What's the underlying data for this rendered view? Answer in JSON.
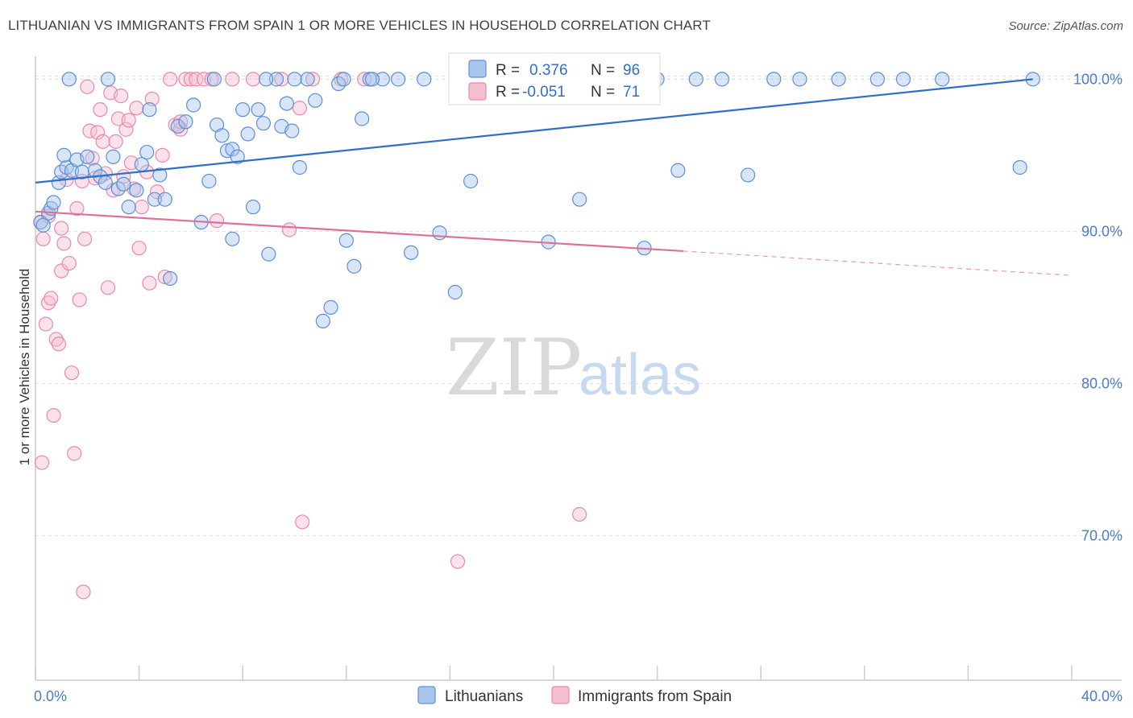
{
  "title": "LITHUANIAN VS IMMIGRANTS FROM SPAIN 1 OR MORE VEHICLES IN HOUSEHOLD CORRELATION CHART",
  "source": "Source: ZipAtlas.com",
  "watermark": {
    "part1": "ZIP",
    "part2": "atlas"
  },
  "colors": {
    "blue_fill": "#a9c6ee",
    "blue_stroke": "#5d8fd6",
    "blue_line": "#2f6fca",
    "pink_fill": "#f6bfd1",
    "pink_stroke": "#e98aaa",
    "pink_line": "#e06f98",
    "tick_text": "#4a7cc7",
    "grid": "#dddddd"
  },
  "chart_data": {
    "type": "scatter",
    "title": "LITHUANIAN VS IMMIGRANTS FROM SPAIN 1 OR MORE VEHICLES IN HOUSEHOLD CORRELATION CHART",
    "xlabel": "",
    "ylabel": "1 or more Vehicles in Household",
    "xlim": [
      0,
      40
    ],
    "ylim": [
      60.5,
      101.5
    ],
    "x_tick_labels": [
      "0.0%",
      "40.0%"
    ],
    "y_ticks": [
      70,
      80,
      90,
      100
    ],
    "y_tick_labels": [
      "70.0%",
      "80.0%",
      "90.0%",
      "100.0%"
    ],
    "grid": "horizontal dashed",
    "legend_position": "top-center",
    "legend": [
      {
        "r_label": "R =",
        "r_value": "0.376",
        "n_label": "N =",
        "n_value": "96"
      },
      {
        "r_label": "R =",
        "r_value": "-0.051",
        "n_label": "N =",
        "n_value": "71"
      }
    ],
    "series": [
      {
        "name": "Lithuanians",
        "color": "#a9c6ee",
        "trend": {
          "x0": 0,
          "y0": 93.2,
          "x1": 38.5,
          "y1": 100.0
        },
        "points": [
          [
            0.2,
            90.6
          ],
          [
            0.3,
            90.4
          ],
          [
            0.5,
            91.2
          ],
          [
            0.6,
            91.5
          ],
          [
            0.7,
            91.9
          ],
          [
            0.9,
            93.2
          ],
          [
            1.0,
            93.9
          ],
          [
            1.2,
            94.2
          ],
          [
            1.4,
            94.0
          ],
          [
            1.6,
            94.7
          ],
          [
            1.8,
            93.9
          ],
          [
            2.0,
            94.9
          ],
          [
            2.3,
            94.0
          ],
          [
            2.5,
            93.6
          ],
          [
            2.7,
            93.2
          ],
          [
            3.0,
            94.9
          ],
          [
            3.2,
            92.8
          ],
          [
            3.4,
            93.1
          ],
          [
            3.6,
            91.6
          ],
          [
            3.9,
            92.7
          ],
          [
            4.1,
            94.4
          ],
          [
            4.3,
            95.2
          ],
          [
            4.6,
            92.1
          ],
          [
            4.8,
            93.7
          ],
          [
            5.0,
            92.1
          ],
          [
            5.5,
            96.9
          ],
          [
            5.8,
            97.2
          ],
          [
            6.1,
            98.3
          ],
          [
            6.4,
            90.6
          ],
          [
            6.7,
            93.3
          ],
          [
            7.0,
            97.0
          ],
          [
            7.2,
            96.3
          ],
          [
            7.4,
            95.3
          ],
          [
            7.6,
            95.4
          ],
          [
            7.8,
            94.9
          ],
          [
            8.0,
            98.0
          ],
          [
            8.2,
            96.4
          ],
          [
            8.4,
            91.6
          ],
          [
            8.6,
            98.0
          ],
          [
            8.8,
            97.1
          ],
          [
            9.0,
            88.5
          ],
          [
            9.3,
            100.0
          ],
          [
            9.5,
            96.9
          ],
          [
            9.7,
            98.4
          ],
          [
            9.9,
            96.6
          ],
          [
            10.2,
            94.2
          ],
          [
            10.5,
            100.0
          ],
          [
            10.8,
            98.6
          ],
          [
            11.1,
            84.1
          ],
          [
            11.4,
            85.0
          ],
          [
            11.7,
            99.7
          ],
          [
            12.0,
            89.4
          ],
          [
            12.3,
            87.7
          ],
          [
            12.6,
            97.4
          ],
          [
            12.9,
            100.0
          ],
          [
            13.4,
            100.0
          ],
          [
            14.0,
            100.0
          ],
          [
            14.5,
            88.6
          ],
          [
            15.0,
            100.0
          ],
          [
            15.6,
            89.9
          ],
          [
            16.2,
            86.0
          ],
          [
            16.8,
            93.3
          ],
          [
            17.5,
            100.0
          ],
          [
            18.2,
            100.0
          ],
          [
            19.0,
            100.0
          ],
          [
            19.8,
            89.3
          ],
          [
            20.5,
            100.0
          ],
          [
            21.0,
            92.1
          ],
          [
            22.0,
            100.0
          ],
          [
            22.8,
            100.0
          ],
          [
            23.5,
            88.9
          ],
          [
            24.0,
            100.0
          ],
          [
            24.8,
            94.0
          ],
          [
            25.5,
            100.0
          ],
          [
            26.5,
            100.0
          ],
          [
            27.5,
            93.7
          ],
          [
            28.5,
            100.0
          ],
          [
            29.5,
            100.0
          ],
          [
            31.0,
            100.0
          ],
          [
            32.5,
            100.0
          ],
          [
            33.5,
            100.0
          ],
          [
            35.0,
            100.0
          ],
          [
            38.0,
            94.2
          ],
          [
            38.5,
            100.0
          ],
          [
            1.3,
            100.0
          ],
          [
            2.8,
            100.0
          ],
          [
            4.4,
            98.0
          ],
          [
            6.9,
            100.0
          ],
          [
            10.0,
            100.0
          ],
          [
            13.0,
            100.0
          ],
          [
            16.5,
            100.0
          ],
          [
            1.1,
            95.0
          ],
          [
            5.2,
            86.9
          ],
          [
            7.6,
            89.5
          ],
          [
            8.9,
            100.0
          ],
          [
            11.9,
            100.0
          ]
        ]
      },
      {
        "name": "Immigrants from Spain",
        "color": "#f6bfd1",
        "trend": {
          "x0": 0,
          "y0": 91.3,
          "x1": 25.0,
          "y1": 88.7
        },
        "trend_dashed": {
          "x0": 25.0,
          "y0": 88.7,
          "x1": 40.0,
          "y1": 87.1
        },
        "points": [
          [
            0.2,
            90.6
          ],
          [
            0.3,
            89.5
          ],
          [
            0.4,
            83.9
          ],
          [
            0.5,
            85.3
          ],
          [
            0.6,
            85.6
          ],
          [
            0.7,
            77.9
          ],
          [
            0.8,
            82.9
          ],
          [
            0.9,
            82.6
          ],
          [
            1.0,
            87.4
          ],
          [
            1.0,
            90.2
          ],
          [
            1.1,
            89.2
          ],
          [
            1.2,
            93.4
          ],
          [
            1.3,
            87.9
          ],
          [
            1.4,
            80.7
          ],
          [
            1.5,
            75.4
          ],
          [
            1.6,
            91.5
          ],
          [
            1.7,
            85.5
          ],
          [
            1.8,
            93.3
          ],
          [
            1.9,
            89.5
          ],
          [
            2.0,
            99.5
          ],
          [
            2.1,
            96.6
          ],
          [
            2.2,
            94.8
          ],
          [
            2.3,
            93.5
          ],
          [
            2.4,
            96.5
          ],
          [
            2.5,
            98.0
          ],
          [
            2.6,
            95.9
          ],
          [
            2.7,
            93.8
          ],
          [
            2.8,
            86.3
          ],
          [
            2.9,
            99.1
          ],
          [
            3.0,
            92.7
          ],
          [
            3.1,
            95.9
          ],
          [
            3.2,
            97.4
          ],
          [
            3.3,
            98.9
          ],
          [
            3.4,
            93.6
          ],
          [
            3.5,
            96.7
          ],
          [
            3.6,
            97.3
          ],
          [
            3.7,
            94.5
          ],
          [
            3.8,
            92.8
          ],
          [
            3.9,
            98.1
          ],
          [
            4.0,
            88.9
          ],
          [
            4.1,
            91.6
          ],
          [
            4.3,
            93.9
          ],
          [
            4.4,
            86.6
          ],
          [
            4.5,
            98.7
          ],
          [
            4.7,
            92.6
          ],
          [
            4.9,
            95.0
          ],
          [
            5.0,
            87.0
          ],
          [
            5.2,
            100.0
          ],
          [
            5.4,
            97.0
          ],
          [
            5.6,
            96.7
          ],
          [
            5.8,
            100.0
          ],
          [
            6.0,
            100.0
          ],
          [
            6.2,
            100.0
          ],
          [
            6.5,
            100.0
          ],
          [
            6.8,
            100.0
          ],
          [
            7.0,
            90.7
          ],
          [
            7.6,
            100.0
          ],
          [
            8.4,
            100.0
          ],
          [
            9.5,
            100.0
          ],
          [
            10.2,
            98.1
          ],
          [
            10.7,
            100.0
          ],
          [
            9.8,
            90.1
          ],
          [
            10.3,
            70.9
          ],
          [
            11.8,
            100.0
          ],
          [
            12.7,
            100.0
          ],
          [
            16.3,
            68.3
          ],
          [
            21.0,
            71.4
          ],
          [
            0.25,
            74.8
          ],
          [
            1.85,
            66.3
          ],
          [
            5.6,
            97.2
          ],
          [
            0.5,
            91.0
          ]
        ]
      }
    ]
  },
  "bottom_legend": {
    "item1": "Lithuanians",
    "item2": "Immigrants from Spain"
  }
}
